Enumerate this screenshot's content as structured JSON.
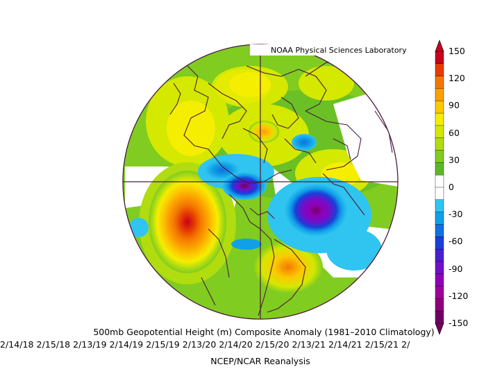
{
  "credit": "NOAA Physical Sciences Laboratory",
  "title": "500mb Geopotential Height (m) Composite Anomaly (1981–2010 Climatology)",
  "dates": "2/14/18 2/15/18 2/13/19 2/14/19 2/15/19 2/13/20 2/14/20 2/15/20 2/13/21 2/14/21 2/15/21 2/",
  "footer": "NCEP/NCAR Reanalysis",
  "colorbar": {
    "labels": [
      "150",
      "120",
      "90",
      "60",
      "30",
      "0",
      "-30",
      "-60",
      "-90",
      "-120",
      "-150"
    ],
    "colors": [
      "#c8001e",
      "#e63c00",
      "#f47800",
      "#fba000",
      "#fcc800",
      "#f5ee00",
      "#d4e800",
      "#b0dc10",
      "#80cc20",
      "#5cb828",
      "#ffffff",
      "#ffffff",
      "#30c4f0",
      "#10a0e8",
      "#1070e0",
      "#1840d8",
      "#4820d0",
      "#7010c8",
      "#9000b8",
      "#a0009c",
      "#90007c",
      "#700060"
    ]
  }
}
